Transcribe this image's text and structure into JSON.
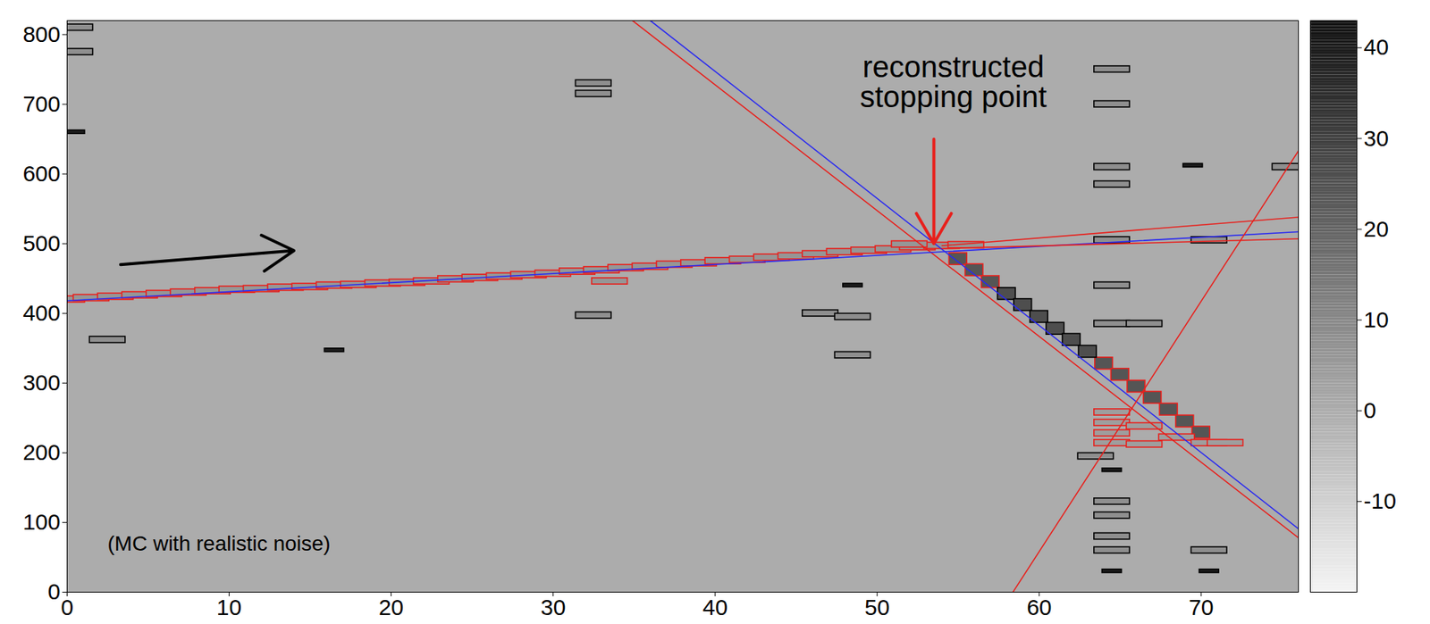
{
  "chart_data": {
    "type": "heatmap",
    "xlim": [
      0,
      76
    ],
    "ylim": [
      0,
      820
    ],
    "xticks": [
      0,
      10,
      20,
      30,
      40,
      50,
      60,
      70
    ],
    "yticks": [
      0,
      100,
      200,
      300,
      400,
      500,
      600,
      700,
      800
    ],
    "clim": [
      -20,
      43
    ],
    "cticks": [
      -10,
      0,
      10,
      20,
      30,
      40
    ],
    "background_value": 0,
    "grid": false,
    "hit_groups": [
      {
        "color": "#e8201c",
        "marker": "box",
        "q": 6,
        "x": [
          0,
          1.5,
          3,
          4.5,
          6,
          7.5,
          9,
          10.5,
          12,
          13.5,
          15,
          16.5,
          18,
          19.5,
          21,
          22.5,
          24,
          25.5,
          27,
          28.5,
          30,
          31.5,
          33,
          34.5,
          36,
          37.5,
          39,
          40.5,
          42,
          43.5,
          45,
          46.5,
          48,
          49.5,
          51,
          52.5,
          54,
          33.5,
          52,
          55.5
        ],
        "y": [
          420,
          422,
          424,
          426,
          428,
          430,
          432,
          434,
          435,
          437,
          438,
          440,
          441,
          443,
          444,
          446,
          449,
          451,
          453,
          455,
          457,
          460,
          462,
          465,
          467,
          470,
          472,
          475,
          477,
          480,
          482,
          485,
          488,
          490,
          492,
          495,
          497,
          446,
          499,
          498
        ]
      },
      {
        "color": "#e8201c",
        "marker": "cell",
        "q": 24,
        "x": [
          55,
          56,
          57,
          64,
          65,
          66,
          67,
          68,
          69,
          70
        ],
        "y": [
          478,
          462,
          445,
          328,
          312,
          295,
          279,
          262,
          245,
          229
        ]
      },
      {
        "color": "#000000",
        "marker": "cell",
        "q": 26,
        "x": [
          58,
          59,
          60,
          61,
          62,
          63
        ],
        "y": [
          428,
          412,
          395,
          378,
          362,
          345
        ]
      },
      {
        "color": "#e8201c",
        "marker": "box",
        "q": 4,
        "x": [
          64.5,
          64.5,
          64.5,
          64.5,
          66.5,
          66.5,
          68.5,
          70.5,
          71.5
        ],
        "y": [
          258,
          243,
          228,
          214,
          238,
          212,
          222,
          214,
          214
        ]
      },
      {
        "color": "#000000",
        "marker": "box",
        "q": 8,
        "x": [
          0.5,
          0.5,
          2.5,
          32.5,
          32.5,
          32.5,
          46.5,
          48.5,
          48.5,
          64.5,
          64.5,
          64.5,
          64.5,
          64.5,
          64.5,
          64.5,
          64.5,
          64.5,
          64.5,
          64.5,
          63.5,
          66.5,
          70.5,
          70.5,
          75.5
        ],
        "y": [
          810,
          775,
          362,
          730,
          715,
          397,
          400,
          395,
          340,
          750,
          700,
          610,
          585,
          505,
          440,
          385,
          130,
          110,
          80,
          60,
          195,
          385,
          505,
          60,
          610
        ]
      },
      {
        "color": "#000000",
        "marker": "bar",
        "q": 40,
        "x": [
          0.5,
          16.5,
          48.5,
          64.5,
          64.5,
          69.5,
          70.5
        ],
        "y": [
          660,
          347,
          440,
          175,
          30,
          612,
          30
        ]
      }
    ],
    "lines": [
      {
        "color": "#2a2af0",
        "x": [
          36,
          76
        ],
        "y": [
          820,
          91
        ]
      },
      {
        "color": "#e8201c",
        "x": [
          34.9,
          76
        ],
        "y": [
          820,
          78
        ]
      },
      {
        "color": "#2a2af0",
        "x": [
          0,
          76
        ],
        "y": [
          418,
          517
        ]
      },
      {
        "color": "#e8201c",
        "x": [
          54,
          76
        ],
        "y": [
          497,
          538
        ]
      },
      {
        "color": "#e8201c",
        "x": [
          54,
          76
        ],
        "y": [
          493,
          507
        ]
      },
      {
        "color": "#e8201c",
        "x": [
          57.1,
          76
        ],
        "y": [
          -46,
          633
        ]
      }
    ],
    "arrows": [
      {
        "color": "#000000",
        "x1": 3.3,
        "y1": 470,
        "x2": 14,
        "y2": 490
      },
      {
        "color": "#e8201c",
        "x1": 53.5,
        "y1": 650,
        "x2": 53.5,
        "y2": 500
      }
    ],
    "annotations": [
      {
        "text": "reconstructed stopping point",
        "x": 54.7,
        "y": 731,
        "color": "#fbd078"
      },
      {
        "text": "(MC with realistic noise)",
        "x": 2.5,
        "y": 69
      }
    ]
  }
}
